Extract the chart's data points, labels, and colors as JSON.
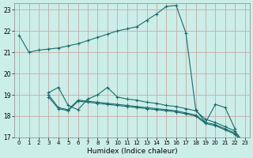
{
  "xlabel": "Humidex (Indice chaleur)",
  "ylabel": "",
  "bg_color": "#cceee8",
  "grid_color": "#c8a8a8",
  "line_color": "#1a6b6b",
  "xlim": [
    -0.5,
    23.5
  ],
  "ylim": [
    17,
    23.3
  ],
  "xticks": [
    0,
    1,
    2,
    3,
    4,
    5,
    6,
    7,
    8,
    9,
    10,
    11,
    12,
    13,
    14,
    15,
    16,
    17,
    18,
    19,
    20,
    21,
    22,
    23
  ],
  "yticks": [
    17,
    18,
    19,
    20,
    21,
    22,
    23
  ],
  "line1_x": [
    0,
    1,
    2,
    3,
    4,
    5,
    6,
    7,
    8,
    9,
    10,
    11,
    12,
    13,
    14,
    15,
    16,
    17,
    18,
    19,
    20,
    21,
    22
  ],
  "line1_y": [
    21.8,
    21.0,
    21.1,
    21.15,
    21.2,
    21.3,
    21.4,
    21.55,
    21.7,
    21.85,
    22.0,
    22.1,
    22.2,
    22.5,
    22.8,
    23.15,
    23.2,
    21.9,
    18.3,
    17.7,
    18.55,
    18.4,
    17.4
  ],
  "line2_x": [
    3,
    4,
    5,
    6,
    7,
    8,
    9,
    10,
    11,
    12,
    13,
    14,
    15,
    16,
    17,
    18,
    19,
    20,
    21,
    22,
    23
  ],
  "line2_y": [
    19.1,
    19.35,
    18.5,
    18.3,
    18.8,
    19.0,
    19.35,
    18.9,
    18.8,
    18.75,
    18.65,
    18.6,
    18.5,
    18.45,
    18.35,
    18.25,
    17.85,
    17.7,
    17.5,
    17.3,
    16.7
  ],
  "line3_x": [
    3,
    4,
    5,
    6,
    7,
    8,
    9,
    10,
    11,
    12,
    13,
    14,
    15,
    16,
    17,
    18,
    19,
    20,
    21,
    22,
    23
  ],
  "line3_y": [
    19.0,
    18.4,
    18.3,
    18.75,
    18.7,
    18.65,
    18.6,
    18.55,
    18.5,
    18.45,
    18.4,
    18.35,
    18.3,
    18.25,
    18.15,
    18.05,
    17.7,
    17.6,
    17.4,
    17.2,
    16.7
  ],
  "line4_x": [
    3,
    4,
    5,
    6,
    7,
    8,
    9,
    10,
    11,
    12,
    13,
    14,
    15,
    16,
    17,
    18,
    19,
    20,
    21,
    22,
    23
  ],
  "line4_y": [
    18.9,
    18.35,
    18.25,
    18.7,
    18.65,
    18.6,
    18.55,
    18.5,
    18.45,
    18.4,
    18.35,
    18.3,
    18.25,
    18.2,
    18.1,
    18.0,
    17.65,
    17.55,
    17.35,
    17.15,
    16.6
  ]
}
